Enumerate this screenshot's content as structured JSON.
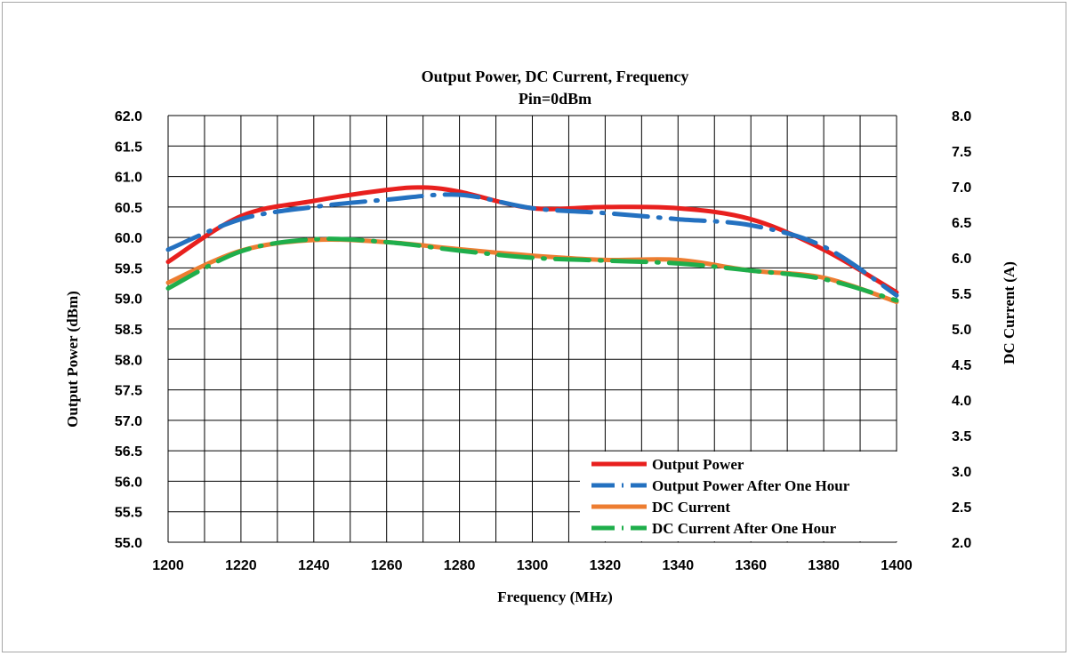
{
  "chart_data": {
    "type": "line",
    "title": "Output Power, DC  Current,  Frequency",
    "subtitle": "Pin=0dBm",
    "xlabel": "Frequency (MHz)",
    "ylabel": "Output  Power (dBm)",
    "y2label": "DC Current  (A)",
    "xlim": [
      1200,
      1400
    ],
    "ylim": [
      55.0,
      62.0
    ],
    "y2lim": [
      2.0,
      8.0
    ],
    "x_ticks": [
      "1200",
      "1220",
      "1240",
      "1260",
      "1280",
      "1300",
      "1320",
      "1340",
      "1360",
      "1380",
      "1400"
    ],
    "y_ticks": [
      "55.0",
      "55.5",
      "56.0",
      "56.5",
      "57.0",
      "57.5",
      "58.0",
      "58.5",
      "59.0",
      "59.5",
      "60.0",
      "60.5",
      "61.0",
      "61.5",
      "62.0"
    ],
    "y2_ticks": [
      "2.0",
      "2.5",
      "3.0",
      "3.5",
      "4.0",
      "4.5",
      "5.0",
      "5.5",
      "6.0",
      "6.5",
      "7.0",
      "7.5",
      "8.0"
    ],
    "grid": true,
    "legend_position": "bottom-right",
    "series": [
      {
        "name": "Output Power",
        "axis": "left",
        "color": "#e8201e",
        "style": "solid",
        "x": [
          1200,
          1220,
          1240,
          1260,
          1270,
          1280,
          1300,
          1320,
          1340,
          1360,
          1380,
          1400
        ],
        "values": [
          59.6,
          60.35,
          60.6,
          60.78,
          60.82,
          60.75,
          60.48,
          60.5,
          60.48,
          60.3,
          59.8,
          59.1
        ]
      },
      {
        "name": "Output Power After One Hour",
        "axis": "left",
        "color": "#2471c0",
        "style": "dashdot",
        "x": [
          1200,
          1220,
          1240,
          1260,
          1280,
          1300,
          1320,
          1340,
          1360,
          1380,
          1400
        ],
        "values": [
          59.8,
          60.3,
          60.5,
          60.62,
          60.7,
          60.48,
          60.4,
          60.3,
          60.2,
          59.85,
          59.05
        ]
      },
      {
        "name": "DC Current",
        "axis": "right",
        "color": "#ed7d31",
        "style": "solid",
        "x": [
          1200,
          1220,
          1240,
          1260,
          1280,
          1300,
          1320,
          1340,
          1360,
          1380,
          1400
        ],
        "values": [
          5.65,
          6.1,
          6.25,
          6.22,
          6.12,
          6.03,
          5.97,
          5.97,
          5.82,
          5.72,
          5.38
        ]
      },
      {
        "name": "DC Current After One Hour",
        "axis": "right",
        "color": "#1fae4b",
        "style": "dashdot",
        "x": [
          1200,
          1220,
          1240,
          1260,
          1280,
          1300,
          1320,
          1340,
          1360,
          1380,
          1400
        ],
        "values": [
          5.57,
          6.09,
          6.26,
          6.22,
          6.1,
          6.0,
          5.96,
          5.92,
          5.82,
          5.7,
          5.4
        ]
      }
    ]
  }
}
